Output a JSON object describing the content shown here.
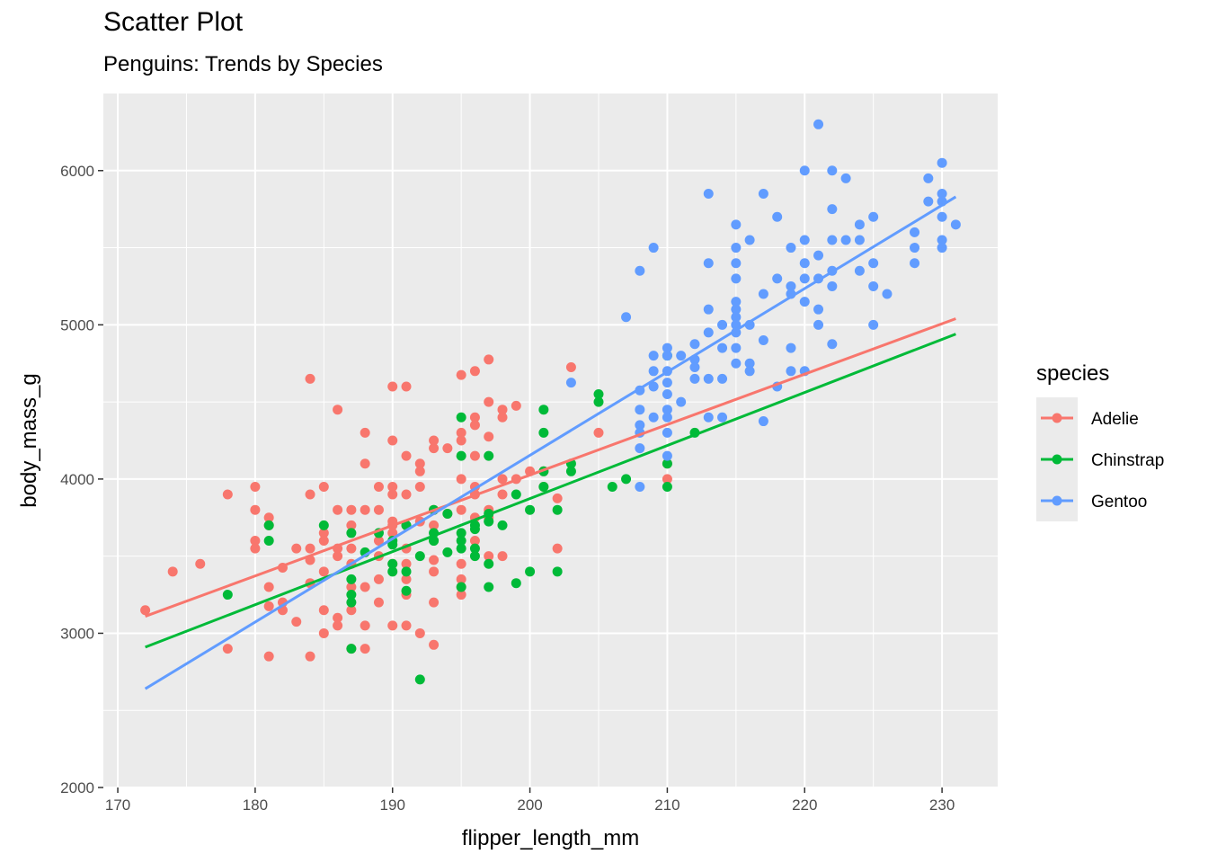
{
  "chart_data": {
    "type": "scatter",
    "title": "Scatter Plot",
    "subtitle": "Penguins: Trends by Species",
    "xlabel": "flipper_length_mm",
    "ylabel": "body_mass_g",
    "xlim": [
      168.95,
      234.05
    ],
    "ylim": [
      2000,
      6500
    ],
    "xticks": [
      170,
      180,
      190,
      200,
      210,
      220,
      230
    ],
    "yticks": [
      2000,
      3000,
      4000,
      5000,
      6000
    ],
    "xtick_labels": [
      "170",
      "180",
      "190",
      "200",
      "210",
      "220",
      "230"
    ],
    "ytick_labels": [
      "2000",
      "3000",
      "4000",
      "5000",
      "6000"
    ],
    "grid": true,
    "legend": {
      "title": "species",
      "position": "right"
    },
    "series": [
      {
        "name": "Adelie",
        "color": "#F8766D",
        "trend": {
          "x": [
            172,
            231
          ],
          "y": [
            3110,
            5040
          ]
        },
        "points": [
          [
            172,
            3150
          ],
          [
            174,
            3400
          ],
          [
            176,
            3450
          ],
          [
            178,
            3900
          ],
          [
            178,
            2900
          ],
          [
            180,
            3950
          ],
          [
            180,
            3800
          ],
          [
            180,
            3600
          ],
          [
            180,
            3550
          ],
          [
            181,
            3750
          ],
          [
            181,
            3700
          ],
          [
            181,
            3300
          ],
          [
            181,
            3175
          ],
          [
            181,
            2850
          ],
          [
            182,
            3425
          ],
          [
            182,
            3200
          ],
          [
            182,
            3150
          ],
          [
            183,
            3550
          ],
          [
            183,
            3075
          ],
          [
            184,
            4650
          ],
          [
            184,
            3900
          ],
          [
            184,
            3550
          ],
          [
            184,
            3475
          ],
          [
            184,
            3325
          ],
          [
            184,
            2850
          ],
          [
            185,
            3950
          ],
          [
            185,
            3650
          ],
          [
            185,
            3600
          ],
          [
            185,
            3400
          ],
          [
            185,
            3150
          ],
          [
            185,
            3000
          ],
          [
            186,
            4450
          ],
          [
            186,
            3800
          ],
          [
            186,
            3550
          ],
          [
            186,
            3500
          ],
          [
            186,
            3100
          ],
          [
            186,
            3050
          ],
          [
            187,
            3800
          ],
          [
            187,
            3700
          ],
          [
            187,
            3550
          ],
          [
            187,
            3450
          ],
          [
            187,
            3300
          ],
          [
            187,
            3150
          ],
          [
            187,
            2900
          ],
          [
            188,
            4300
          ],
          [
            188,
            4100
          ],
          [
            188,
            3800
          ],
          [
            188,
            3300
          ],
          [
            188,
            3050
          ],
          [
            188,
            2900
          ],
          [
            189,
            3950
          ],
          [
            189,
            3800
          ],
          [
            189,
            3600
          ],
          [
            189,
            3500
          ],
          [
            189,
            3350
          ],
          [
            189,
            3200
          ],
          [
            190,
            4600
          ],
          [
            190,
            4250
          ],
          [
            190,
            3950
          ],
          [
            190,
            3900
          ],
          [
            190,
            3725
          ],
          [
            190,
            3700
          ],
          [
            190,
            3650
          ],
          [
            190,
            3450
          ],
          [
            190,
            3050
          ],
          [
            191,
            4600
          ],
          [
            191,
            3900
          ],
          [
            191,
            3700
          ],
          [
            191,
            3550
          ],
          [
            191,
            3450
          ],
          [
            191,
            3350
          ],
          [
            191,
            3250
          ],
          [
            191,
            3050
          ],
          [
            191,
            4150
          ],
          [
            192,
            4100
          ],
          [
            192,
            4050
          ],
          [
            192,
            3950
          ],
          [
            192,
            3725
          ],
          [
            192,
            3000
          ],
          [
            193,
            4250
          ],
          [
            193,
            4200
          ],
          [
            193,
            3800
          ],
          [
            193,
            3700
          ],
          [
            193,
            3475
          ],
          [
            193,
            3400
          ],
          [
            193,
            3200
          ],
          [
            193,
            2925
          ],
          [
            194,
            4200
          ],
          [
            194,
            3775
          ],
          [
            195,
            4675
          ],
          [
            195,
            4300
          ],
          [
            195,
            4250
          ],
          [
            195,
            4000
          ],
          [
            195,
            3800
          ],
          [
            195,
            3450
          ],
          [
            195,
            3350
          ],
          [
            195,
            3300
          ],
          [
            195,
            3250
          ],
          [
            196,
            4700
          ],
          [
            196,
            4400
          ],
          [
            196,
            4350
          ],
          [
            196,
            4150
          ],
          [
            196,
            3950
          ],
          [
            196,
            3900
          ],
          [
            196,
            3750
          ],
          [
            196,
            3600
          ],
          [
            197,
            4775
          ],
          [
            197,
            4500
          ],
          [
            197,
            4275
          ],
          [
            197,
            3800
          ],
          [
            197,
            3500
          ],
          [
            198,
            4450
          ],
          [
            198,
            4400
          ],
          [
            198,
            4000
          ],
          [
            198,
            3900
          ],
          [
            198,
            3500
          ],
          [
            199,
            4475
          ],
          [
            199,
            4000
          ],
          [
            200,
            4050
          ],
          [
            201,
            4050
          ],
          [
            201,
            3950
          ],
          [
            202,
            3875
          ],
          [
            202,
            3550
          ],
          [
            203,
            4725
          ],
          [
            205,
            4300
          ],
          [
            210,
            4000
          ],
          [
            210,
            4100
          ],
          [
            197,
            3750
          ]
        ]
      },
      {
        "name": "Chinstrap",
        "color": "#00BA38",
        "trend": {
          "x": [
            172,
            231
          ],
          "y": [
            2910,
            4940
          ]
        },
        "points": [
          [
            178,
            3250
          ],
          [
            181,
            3700
          ],
          [
            181,
            3600
          ],
          [
            185,
            3700
          ],
          [
            187,
            3650
          ],
          [
            187,
            3350
          ],
          [
            187,
            3250
          ],
          [
            187,
            3200
          ],
          [
            187,
            2900
          ],
          [
            188,
            3525
          ],
          [
            189,
            3650
          ],
          [
            190,
            3600
          ],
          [
            190,
            3575
          ],
          [
            190,
            3450
          ],
          [
            190,
            3400
          ],
          [
            191,
            3700
          ],
          [
            191,
            3400
          ],
          [
            191,
            3275
          ],
          [
            192,
            2700
          ],
          [
            192,
            3500
          ],
          [
            193,
            3800
          ],
          [
            193,
            3650
          ],
          [
            193,
            3600
          ],
          [
            194,
            3775
          ],
          [
            194,
            3525
          ],
          [
            195,
            4400
          ],
          [
            195,
            4150
          ],
          [
            195,
            3650
          ],
          [
            195,
            3600
          ],
          [
            195,
            3550
          ],
          [
            195,
            3300
          ],
          [
            196,
            3675
          ],
          [
            196,
            3550
          ],
          [
            196,
            3500
          ],
          [
            197,
            4150
          ],
          [
            197,
            3775
          ],
          [
            197,
            3725
          ],
          [
            197,
            3450
          ],
          [
            197,
            3300
          ],
          [
            198,
            3700
          ],
          [
            199,
            3900
          ],
          [
            199,
            3325
          ],
          [
            200,
            3800
          ],
          [
            200,
            3400
          ],
          [
            201,
            4450
          ],
          [
            201,
            4300
          ],
          [
            201,
            4050
          ],
          [
            201,
            3950
          ],
          [
            202,
            3800
          ],
          [
            202,
            3400
          ],
          [
            203,
            4100
          ],
          [
            203,
            4050
          ],
          [
            205,
            4550
          ],
          [
            205,
            4500
          ],
          [
            206,
            3950
          ],
          [
            207,
            4000
          ],
          [
            210,
            4800
          ],
          [
            210,
            4100
          ],
          [
            210,
            3950
          ],
          [
            212,
            4300
          ],
          [
            193,
            3600
          ],
          [
            196,
            3700
          ]
        ]
      },
      {
        "name": "Gentoo",
        "color": "#619CFF",
        "trend": {
          "x": [
            172,
            231
          ],
          "y": [
            2640,
            5830
          ]
        },
        "points": [
          [
            203,
            4625
          ],
          [
            207,
            5050
          ],
          [
            208,
            5350
          ],
          [
            208,
            4575
          ],
          [
            208,
            4450
          ],
          [
            208,
            4350
          ],
          [
            208,
            4300
          ],
          [
            208,
            4200
          ],
          [
            208,
            3950
          ],
          [
            209,
            5500
          ],
          [
            209,
            4800
          ],
          [
            209,
            4700
          ],
          [
            209,
            4600
          ],
          [
            209,
            4400
          ],
          [
            210,
            4850
          ],
          [
            210,
            4800
          ],
          [
            210,
            4700
          ],
          [
            210,
            4625
          ],
          [
            210,
            4550
          ],
          [
            210,
            4450
          ],
          [
            210,
            4400
          ],
          [
            210,
            4300
          ],
          [
            210,
            4150
          ],
          [
            211,
            4800
          ],
          [
            211,
            4500
          ],
          [
            212,
            4875
          ],
          [
            212,
            4775
          ],
          [
            212,
            4725
          ],
          [
            212,
            4650
          ],
          [
            213,
            5850
          ],
          [
            213,
            5400
          ],
          [
            213,
            5100
          ],
          [
            213,
            4950
          ],
          [
            213,
            4650
          ],
          [
            213,
            4400
          ],
          [
            214,
            5000
          ],
          [
            214,
            4850
          ],
          [
            214,
            4650
          ],
          [
            214,
            4400
          ],
          [
            215,
            5650
          ],
          [
            215,
            5500
          ],
          [
            215,
            5400
          ],
          [
            215,
            5300
          ],
          [
            215,
            5150
          ],
          [
            215,
            5100
          ],
          [
            215,
            5050
          ],
          [
            215,
            5000
          ],
          [
            215,
            4950
          ],
          [
            215,
            4850
          ],
          [
            215,
            4750
          ],
          [
            216,
            5550
          ],
          [
            216,
            5000
          ],
          [
            216,
            4750
          ],
          [
            216,
            4700
          ],
          [
            217,
            5850
          ],
          [
            217,
            5200
          ],
          [
            217,
            4900
          ],
          [
            217,
            4375
          ],
          [
            218,
            5700
          ],
          [
            218,
            5300
          ],
          [
            218,
            4600
          ],
          [
            219,
            5500
          ],
          [
            219,
            5250
          ],
          [
            219,
            5200
          ],
          [
            219,
            4850
          ],
          [
            219,
            4700
          ],
          [
            220,
            6000
          ],
          [
            220,
            5550
          ],
          [
            220,
            5400
          ],
          [
            220,
            5300
          ],
          [
            220,
            5150
          ],
          [
            220,
            4700
          ],
          [
            221,
            6300
          ],
          [
            221,
            5450
          ],
          [
            221,
            5300
          ],
          [
            221,
            5100
          ],
          [
            221,
            5000
          ],
          [
            222,
            6000
          ],
          [
            222,
            5750
          ],
          [
            222,
            5550
          ],
          [
            222,
            5350
          ],
          [
            222,
            5250
          ],
          [
            222,
            4875
          ],
          [
            223,
            5950
          ],
          [
            223,
            5550
          ],
          [
            224,
            5650
          ],
          [
            224,
            5550
          ],
          [
            224,
            5350
          ],
          [
            225,
            5700
          ],
          [
            225,
            5400
          ],
          [
            225,
            5250
          ],
          [
            225,
            5000
          ],
          [
            226,
            5200
          ],
          [
            228,
            5600
          ],
          [
            228,
            5500
          ],
          [
            228,
            5400
          ],
          [
            229,
            5950
          ],
          [
            229,
            5800
          ],
          [
            230,
            6050
          ],
          [
            230,
            5850
          ],
          [
            230,
            5800
          ],
          [
            230,
            5700
          ],
          [
            230,
            5550
          ],
          [
            230,
            5500
          ],
          [
            231,
            5650
          ]
        ]
      }
    ]
  }
}
